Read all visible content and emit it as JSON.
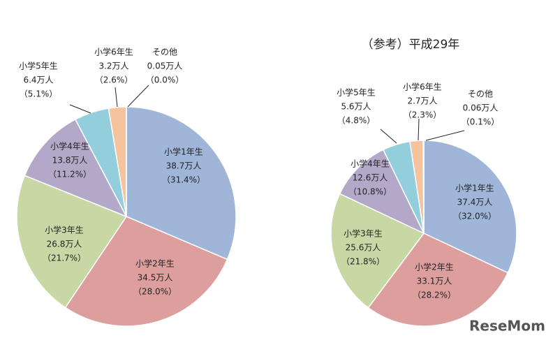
{
  "chart_data": [
    {
      "type": "pie",
      "categories": [
        "小学1年生",
        "小学2年生",
        "小学3年生",
        "小学4年生",
        "小学5年生",
        "小学6年生",
        "その他"
      ],
      "values": [
        31.4,
        28.0,
        21.7,
        11.2,
        5.1,
        2.6,
        0.0
      ],
      "value_labels": [
        "（31.4%）",
        "（28.0%）",
        "（21.7%）",
        "（11.2%）",
        "（5.1%）",
        "（2.6%）",
        "（0.0%）"
      ],
      "amounts": [
        38.7,
        34.5,
        26.8,
        13.8,
        6.4,
        3.2,
        0.05
      ],
      "amount_labels": [
        "38.7万人",
        "34.5万人",
        "26.8万人",
        "13.8万人",
        "6.4万人",
        "3.2万人",
        "0.05万人"
      ],
      "colors": [
        "#9fb6d8",
        "#dc9f9e",
        "#c8d8a5",
        "#b4a8c9",
        "#93cedc",
        "#f5c49e",
        "#bfbfbf"
      ]
    },
    {
      "type": "pie",
      "title": "（参考）平成29年",
      "categories": [
        "小学1年生",
        "小学2年生",
        "小学3年生",
        "小学4年生",
        "小学5年生",
        "小学6年生",
        "その他"
      ],
      "values": [
        32.0,
        28.2,
        21.8,
        10.8,
        4.8,
        2.3,
        0.1
      ],
      "value_labels": [
        "（32.0%）",
        "（28.2%）",
        "（21.8%）",
        "（10.8%）",
        "（4.8%）",
        "（2.3%）",
        "（0.1%）"
      ],
      "amounts": [
        37.4,
        33.1,
        25.6,
        12.6,
        5.6,
        2.7,
        0.06
      ],
      "amount_labels": [
        "37.4万人",
        "33.1万人",
        "25.6万人",
        "12.6万人",
        "5.6万人",
        "2.7万人",
        "0.06万人"
      ],
      "colors": [
        "#9fb6d8",
        "#dc9f9e",
        "#c8d8a5",
        "#b4a8c9",
        "#93cedc",
        "#f5c49e",
        "#bfbfbf"
      ]
    }
  ],
  "watermark": "ReseMom"
}
